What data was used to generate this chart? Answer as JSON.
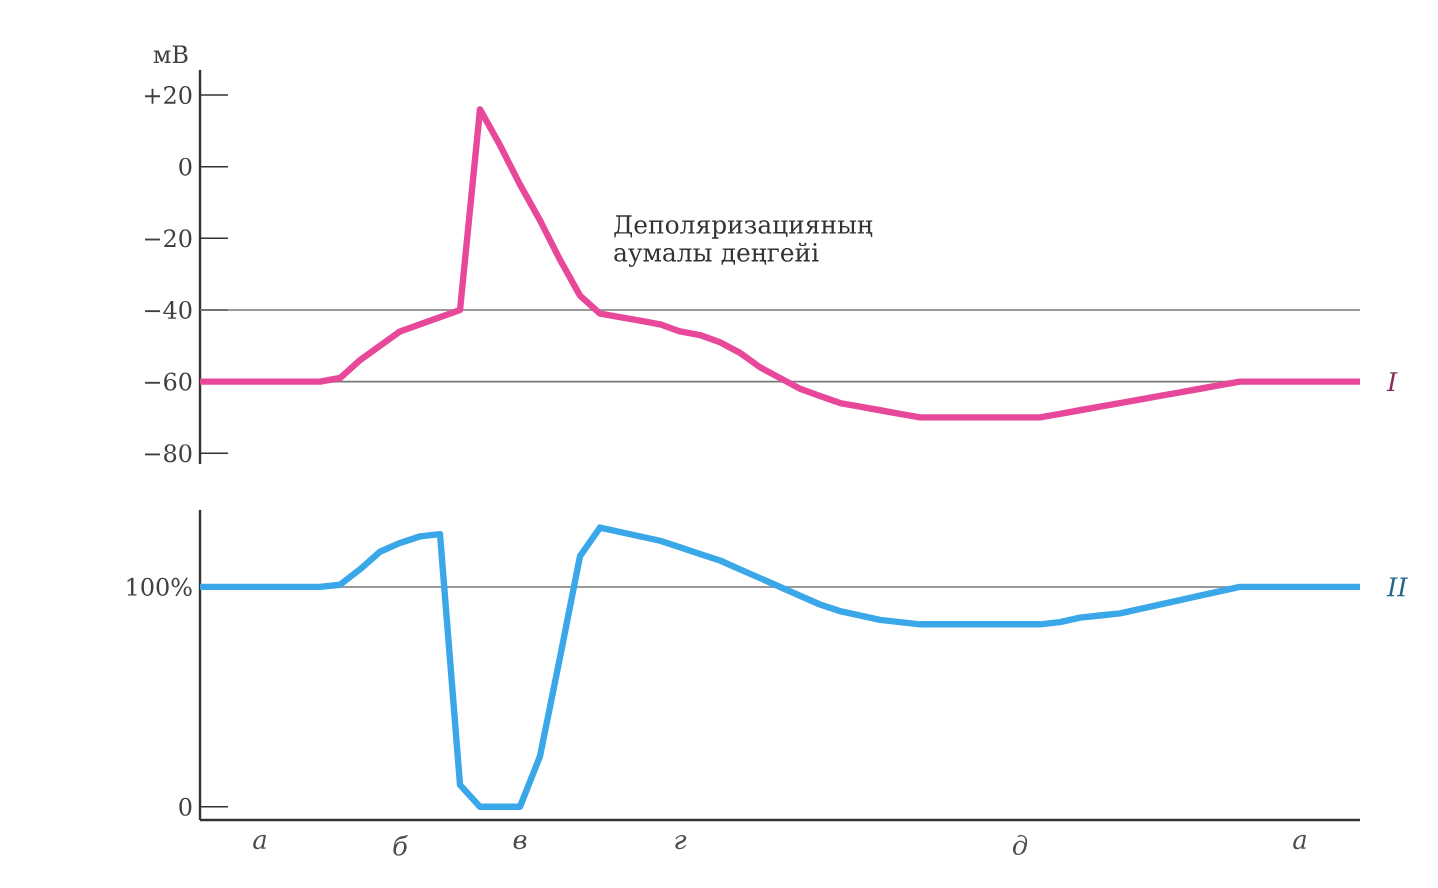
{
  "chart_data": [
    {
      "type": "line",
      "ylabel": "мВ",
      "ylim": [
        -83,
        27
      ],
      "tick_labels": "y",
      "yticks": [
        {
          "value": 20,
          "label": "+20"
        },
        {
          "value": 0,
          "label": "0"
        },
        {
          "value": -20,
          "label": "−20"
        },
        {
          "value": -40,
          "label": "−40"
        },
        {
          "value": -60,
          "label": "−60"
        },
        {
          "value": -80,
          "label": "−80"
        }
      ],
      "categories": [
        null,
        null,
        null,
        null,
        null,
        null,
        null,
        null,
        null,
        null,
        null,
        null,
        null,
        null,
        null,
        null,
        null,
        null,
        null,
        null,
        null,
        null,
        null,
        null,
        null,
        null,
        null,
        null,
        null,
        null,
        null,
        null,
        null,
        null,
        null,
        null,
        null,
        null,
        null,
        null,
        null,
        null,
        null,
        null,
        null,
        null,
        null,
        null,
        null,
        null,
        null,
        null,
        null,
        null,
        null,
        null,
        null,
        null,
        null
      ],
      "series": [
        {
          "name": "I",
          "color": "#e8489a",
          "values": [
            -60,
            -60,
            -60,
            -60,
            -60,
            -60,
            -60,
            -59,
            -54,
            -50,
            -46,
            -44,
            -42,
            -40,
            16,
            6,
            -5,
            -15,
            -26,
            -36,
            -41,
            -42,
            -43,
            -44,
            -46,
            -47,
            -49,
            -52,
            -56,
            -59,
            -62,
            -64,
            -66,
            -67,
            -68,
            -69,
            -70,
            -70,
            -70,
            -70,
            -70,
            -70,
            -70,
            -69,
            -68,
            -67,
            -66,
            -65,
            -64,
            -63,
            -62,
            -61,
            -60,
            -60,
            -60,
            -60,
            -60,
            -60,
            -60
          ]
        }
      ],
      "ref_lines": [
        {
          "axis": "y",
          "value": -40,
          "label": "Деполяризацияның аумалы деңгейі",
          "color": "#777777"
        },
        {
          "axis": "y",
          "value": -60,
          "color": "#777777"
        }
      ]
    },
    {
      "type": "line",
      "ylim": [
        -6,
        135
      ],
      "yticks": [
        {
          "value": 0,
          "label": "0"
        },
        {
          "value": 100,
          "label": "100%"
        }
      ],
      "categories": [
        null,
        null,
        null,
        "а",
        null,
        null,
        null,
        null,
        null,
        null,
        "б",
        null,
        null,
        null,
        null,
        null,
        "в",
        null,
        null,
        null,
        null,
        null,
        null,
        null,
        "г",
        null,
        null,
        null,
        null,
        null,
        null,
        null,
        null,
        null,
        null,
        null,
        null,
        null,
        null,
        null,
        null,
        "д",
        null,
        null,
        null,
        null,
        null,
        null,
        null,
        null,
        null,
        null,
        null,
        null,
        null,
        "а",
        null,
        null,
        null
      ],
      "series": [
        {
          "name": "II",
          "color": "#3aa8e8",
          "values": [
            100,
            100,
            100,
            100,
            100,
            100,
            100,
            101,
            108,
            116,
            120,
            123,
            124,
            10,
            0,
            0,
            0,
            23,
            68,
            114,
            127,
            125,
            123,
            121,
            118,
            115,
            112,
            108,
            104,
            100,
            96,
            92,
            89,
            87,
            85,
            84,
            83,
            83,
            83,
            83,
            83,
            83,
            83,
            84,
            86,
            87,
            88,
            90,
            92,
            94,
            96,
            98,
            100,
            100,
            100,
            100,
            100,
            100,
            100
          ]
        }
      ],
      "ref_lines": [
        {
          "axis": "y",
          "value": 100,
          "color": "#777777"
        }
      ]
    }
  ]
}
